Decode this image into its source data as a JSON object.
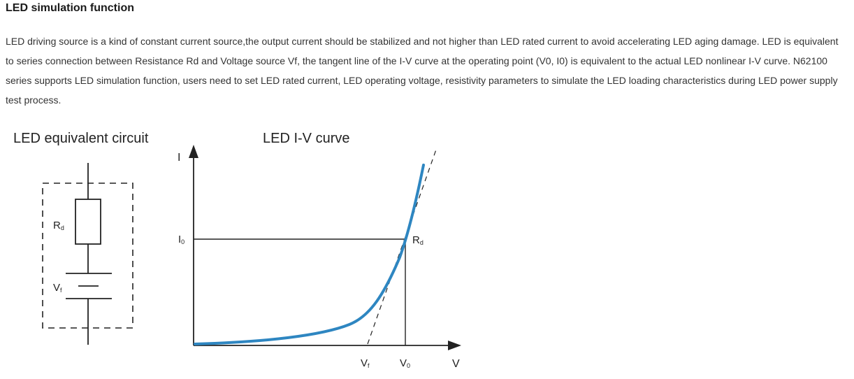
{
  "section": {
    "title": "LED simulation function",
    "paragraph": "LED driving source is a kind of constant current source,the output current should be stabilized and not higher than LED rated current to avoid accelerating LED aging damage. LED is equivalent to series connection between Resistance Rd and Voltage source Vf, the tangent line of the I-V curve at the operating point (V0, I0) is equivalent to the actual LED nonlinear I-V curve. N62100 series supports LED simulation function, users need to set LED rated current, LED operating voltage, resistivity parameters to simulate the LED loading characteristics during LED power supply test process."
  },
  "circuit": {
    "title": "LED equivalent circuit",
    "rd_label": {
      "main": "R",
      "sub": "d"
    },
    "vf_label": {
      "main": "V",
      "sub": "f"
    }
  },
  "iv": {
    "title": "LED  I-V curve",
    "y_axis_label": "I",
    "x_axis_label": "V",
    "i0_label": {
      "main": "I",
      "sub": "0"
    },
    "rd_label": {
      "main": "R",
      "sub": "d"
    },
    "vf_label": {
      "main": "V",
      "sub": "f"
    },
    "v0_label": {
      "main": "V",
      "sub": "0"
    },
    "curve_color": "#2e86c1"
  }
}
